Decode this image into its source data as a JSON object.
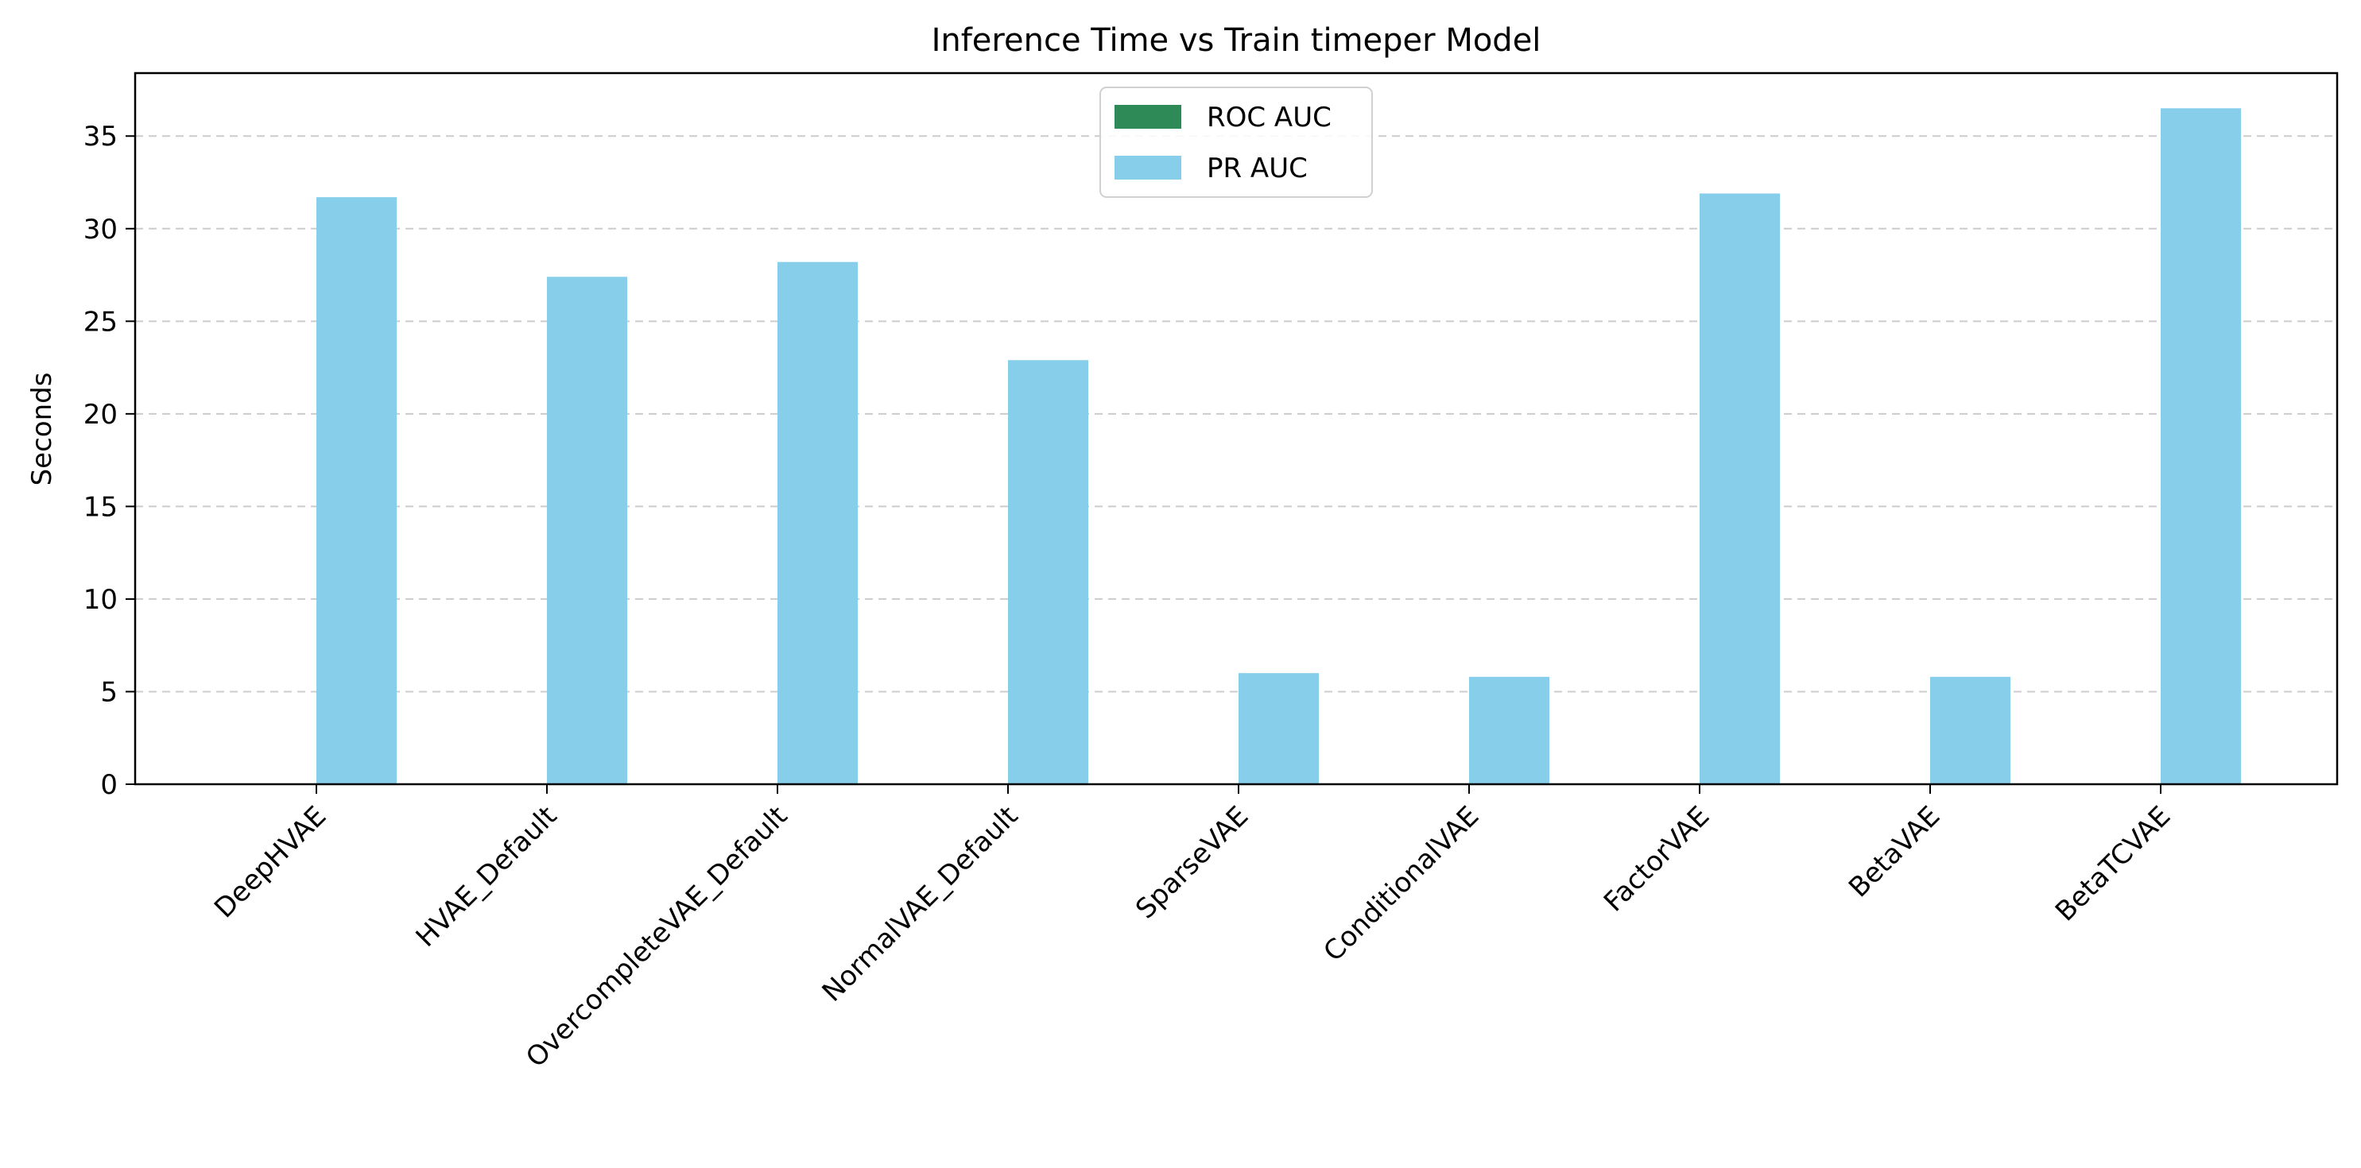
{
  "chart_data": {
    "type": "bar",
    "title": "Inference Time vs Train timeper Model",
    "xlabel": "",
    "ylabel": "Seconds",
    "ylim": [
      0,
      38.4
    ],
    "yticks": [
      0,
      5,
      10,
      15,
      20,
      25,
      30,
      35
    ],
    "grid": "y-dashed",
    "legend_position": "top-center",
    "categories": [
      "DeepHVAE",
      "HVAE_Default",
      "OvercompleteVAE_Default",
      "NormalVAE_Default",
      "SparseVAE",
      "ConditionalVAE",
      "FactorVAE",
      "BetaVAE",
      "BetaTCVAE"
    ],
    "series": [
      {
        "name": "ROC AUC",
        "color": "#2e8b57",
        "values": [
          0,
          0,
          0,
          0,
          0,
          0,
          0,
          0,
          0
        ]
      },
      {
        "name": "PR AUC",
        "color": "#87ceeb",
        "values": [
          31.7,
          27.4,
          28.2,
          22.9,
          6.0,
          5.8,
          31.9,
          5.8,
          36.5
        ]
      }
    ]
  }
}
